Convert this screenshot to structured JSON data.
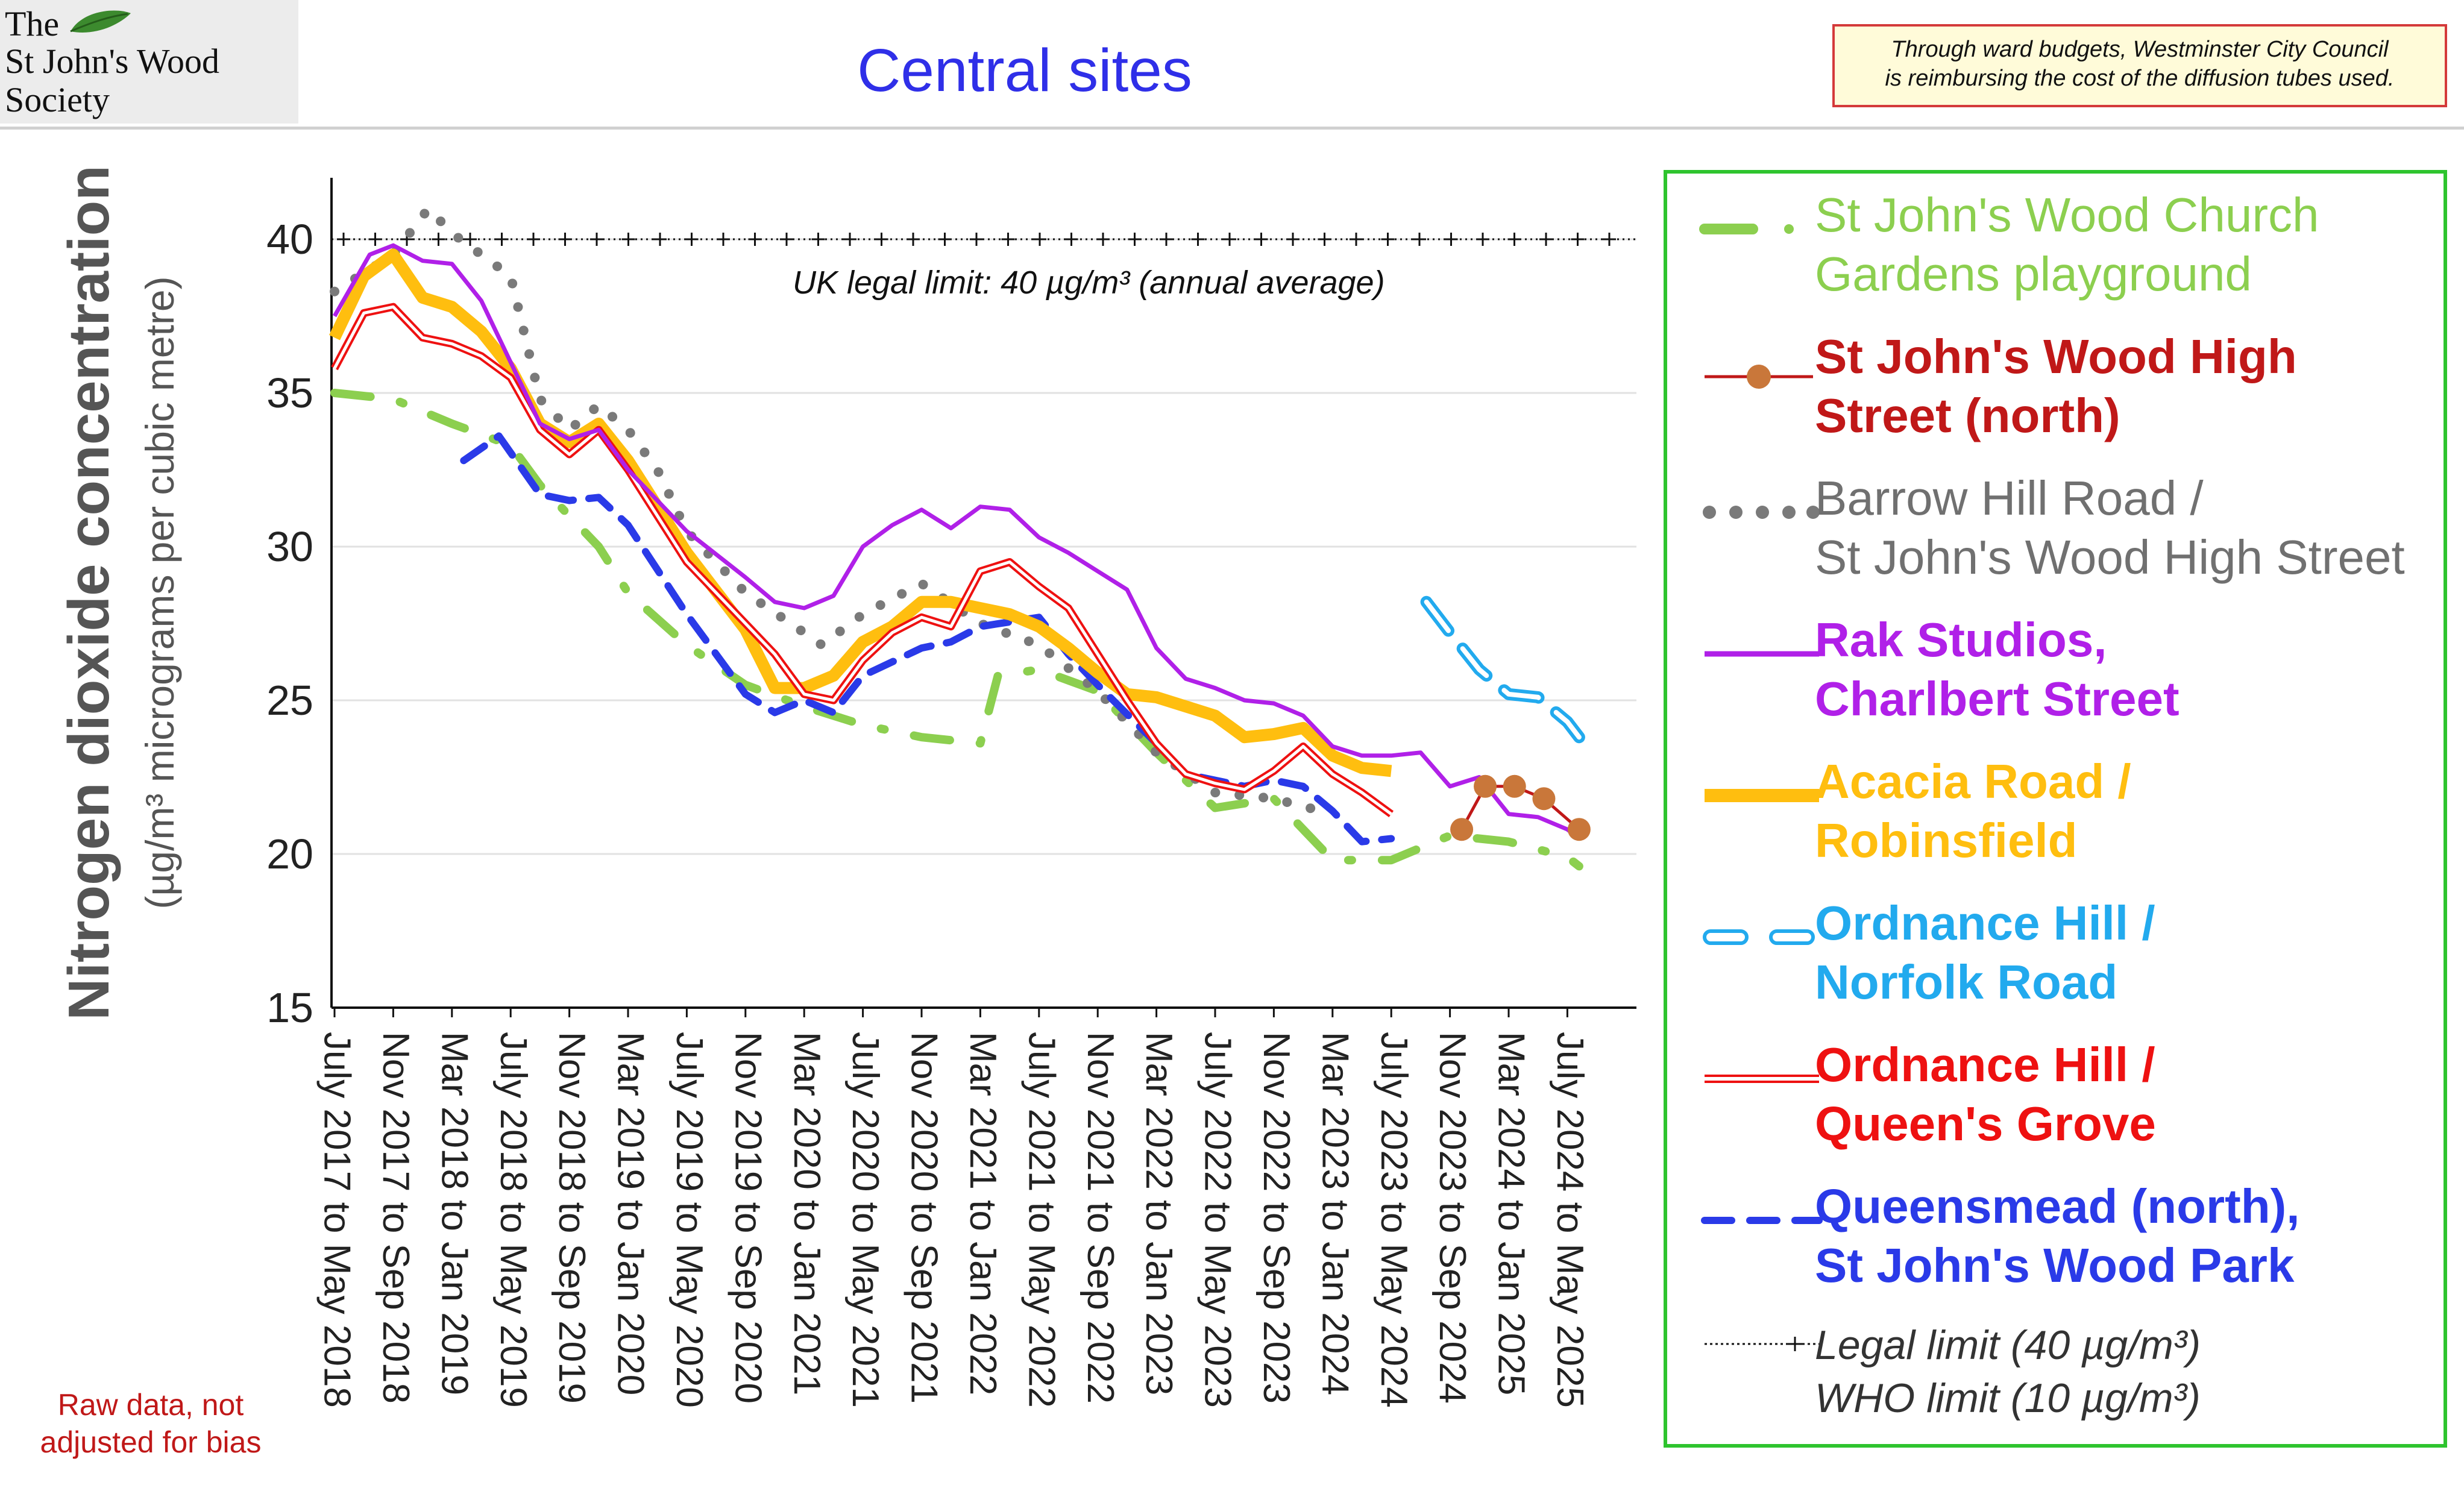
{
  "header": {
    "logo_line1": "The",
    "logo_line2": "St John's Wood",
    "logo_line3": "Society",
    "title": "Central sites",
    "note_line1": "Through ward budgets, Westminster City Council",
    "note_line2": "is reimbursing the cost of the diffusion tubes used.",
    "bias_note": "Raw data, not adjusted for bias"
  },
  "colors": {
    "church": "#8ccf4f",
    "high_street": "#c01818",
    "high_street_marker": "#c9773a",
    "barrow": "#7a7a7a",
    "rak": "#b020e8",
    "acacia": "#ffbe0f",
    "ordnance_norfolk": "#22aaee",
    "ordnance_queens": "#ee1111",
    "queensmead": "#2a3ae8",
    "legend_border": "#2ec42e"
  },
  "chart_data": {
    "type": "line",
    "ylabel_main": "Nitrogen dioxide concentration",
    "ylabel_sub": "(µg/m³ micrograms per cubic metre)",
    "ylim": [
      15,
      42
    ],
    "yticks": [
      15,
      20,
      25,
      30,
      35,
      40
    ],
    "grid": true,
    "legend_position": "right",
    "annotation": "UK legal limit:  40 µg/m³ (annual average)",
    "x_labels": [
      "July 2017 to May 2018",
      "Nov 2017 to Sep 2018",
      "Mar 2018 to Jan 2019",
      "July 2018 to May 2019",
      "Nov 2018 to Sep 2019",
      "Mar 2019 to Jan 2020",
      "July 2019 to May 2020",
      "Nov 2019 to Sep 2020",
      "Mar 2020 to Jan 2021",
      "July 2020 to May 2021",
      "Nov 2020 to Sep 2021",
      "Mar 2021 to Jan 2022",
      "July 2021 to May 2022",
      "Nov 2021 to Sep 2022",
      "Mar 2022 to Jan 2023",
      "July 2022 to May 2023",
      "Nov 2022 to Sep 2023",
      "Mar 2023 to Jan 2024",
      "July 2023 to May 2024",
      "Nov 2023 to Sep 2024",
      "Mar 2024 to Jan 2025",
      "July 2024 to May 2025"
    ],
    "x_range": [
      0,
      21.5
    ],
    "limit_line": {
      "value": 40
    },
    "series": [
      {
        "key": "church",
        "name": "St John's Wood Church\nGardens playground",
        "style": "dashdot",
        "points": [
          [
            0,
            35
          ],
          [
            1,
            34.8
          ],
          [
            2,
            34
          ],
          [
            3,
            33.3
          ],
          [
            3.5,
            32
          ],
          [
            4,
            31
          ],
          [
            4.5,
            30
          ],
          [
            5,
            28.5
          ],
          [
            6,
            26.8
          ],
          [
            7,
            25.5
          ],
          [
            8,
            24.8
          ],
          [
            9,
            24.2
          ],
          [
            9.5,
            24
          ],
          [
            10,
            23.8
          ],
          [
            11,
            23.6
          ],
          [
            11.3,
            25.8
          ],
          [
            12,
            26
          ],
          [
            13,
            25.3
          ],
          [
            14,
            23.3
          ],
          [
            15,
            21.5
          ],
          [
            16,
            21.8
          ],
          [
            17,
            19.8
          ],
          [
            18,
            19.8
          ],
          [
            19,
            20.6
          ],
          [
            20,
            20.4
          ],
          [
            21,
            19.9
          ],
          [
            21.2,
            19.6
          ]
        ]
      },
      {
        "key": "high_street",
        "name": "St John's Wood High\nStreet (north)",
        "style": "marker",
        "points": [
          [
            19.2,
            20.8
          ],
          [
            19.6,
            22.2
          ],
          [
            20.1,
            22.2
          ],
          [
            20.6,
            21.8
          ],
          [
            21.2,
            20.8
          ]
        ]
      },
      {
        "key": "barrow",
        "name": "Barrow Hill Road /\nSt John's Wood High Street",
        "style": "dotted",
        "points": [
          [
            0,
            38.3
          ],
          [
            1,
            39.5
          ],
          [
            1.6,
            41
          ],
          [
            2,
            40.2
          ],
          [
            3,
            38.8
          ],
          [
            3.5,
            34.8
          ],
          [
            4,
            33.8
          ],
          [
            4.5,
            34.6
          ],
          [
            5,
            33.8
          ],
          [
            5.5,
            32.5
          ],
          [
            6,
            30.5
          ],
          [
            7,
            28.5
          ],
          [
            8,
            27.2
          ],
          [
            8.3,
            26.8
          ],
          [
            9,
            27.8
          ],
          [
            10,
            28.8
          ],
          [
            11,
            27.5
          ],
          [
            12,
            26.8
          ],
          [
            13,
            25.3
          ],
          [
            14,
            23.3
          ],
          [
            15,
            22
          ],
          [
            16,
            21.8
          ],
          [
            17,
            21.3
          ]
        ]
      },
      {
        "key": "rak",
        "name": "Rak Studios,\nCharlbert Street",
        "style": "solid",
        "points": [
          [
            0,
            37.5
          ],
          [
            0.6,
            39.5
          ],
          [
            1,
            39.8
          ],
          [
            1.5,
            39.3
          ],
          [
            2,
            39.2
          ],
          [
            2.5,
            38
          ],
          [
            3,
            36
          ],
          [
            3.5,
            34
          ],
          [
            4,
            33.5
          ],
          [
            4.5,
            33.8
          ],
          [
            5,
            32.5
          ],
          [
            6,
            30.5
          ],
          [
            7,
            29
          ],
          [
            7.5,
            28.2
          ],
          [
            8,
            28
          ],
          [
            8.5,
            28.4
          ],
          [
            9,
            30
          ],
          [
            9.5,
            30.7
          ],
          [
            10,
            31.2
          ],
          [
            10.5,
            30.6
          ],
          [
            11,
            31.3
          ],
          [
            11.5,
            31.2
          ],
          [
            12,
            30.3
          ],
          [
            12.5,
            29.8
          ],
          [
            13,
            29.2
          ],
          [
            13.5,
            28.6
          ],
          [
            14,
            26.7
          ],
          [
            14.5,
            25.7
          ],
          [
            15,
            25.4
          ],
          [
            15.5,
            25
          ],
          [
            16,
            24.9
          ],
          [
            16.5,
            24.5
          ],
          [
            17,
            23.5
          ],
          [
            17.5,
            23.2
          ],
          [
            18,
            23.2
          ],
          [
            18.5,
            23.3
          ],
          [
            19,
            22.2
          ],
          [
            19.5,
            22.5
          ],
          [
            20,
            21.3
          ],
          [
            20.5,
            21.2
          ],
          [
            21,
            20.8
          ],
          [
            21.2,
            20.5
          ]
        ]
      },
      {
        "key": "acacia",
        "name": "Acacia Road /\nRobinsfield",
        "style": "thick",
        "points": [
          [
            0,
            36.8
          ],
          [
            0.5,
            38.8
          ],
          [
            1,
            39.5
          ],
          [
            1.5,
            38.1
          ],
          [
            2,
            37.8
          ],
          [
            2.5,
            37
          ],
          [
            3,
            35.8
          ],
          [
            3.5,
            34
          ],
          [
            4,
            33.4
          ],
          [
            4.5,
            34
          ],
          [
            5,
            32.8
          ],
          [
            6,
            29.8
          ],
          [
            7,
            27.3
          ],
          [
            7.5,
            25.4
          ],
          [
            8,
            25.4
          ],
          [
            8.5,
            25.8
          ],
          [
            9,
            26.9
          ],
          [
            9.5,
            27.4
          ],
          [
            10,
            28.2
          ],
          [
            10.5,
            28.2
          ],
          [
            11,
            28
          ],
          [
            11.5,
            27.8
          ],
          [
            12,
            27.4
          ],
          [
            12.5,
            26.7
          ],
          [
            13,
            25.9
          ],
          [
            13.5,
            25.2
          ],
          [
            14,
            25.1
          ],
          [
            14.5,
            24.8
          ],
          [
            15,
            24.5
          ],
          [
            15.5,
            23.8
          ],
          [
            16,
            23.9
          ],
          [
            16.5,
            24.1
          ],
          [
            17,
            23.2
          ],
          [
            17.5,
            22.8
          ],
          [
            18,
            22.7
          ]
        ]
      },
      {
        "key": "ordnance_norfolk",
        "name": "Ordnance Hill /\nNorfolk Road",
        "style": "pill-dash",
        "points": [
          [
            18.6,
            28.2
          ],
          [
            19,
            27.2
          ],
          [
            19.5,
            26
          ],
          [
            20,
            25.2
          ],
          [
            20.5,
            25.1
          ],
          [
            21,
            24.3
          ],
          [
            21.2,
            23.8
          ]
        ]
      },
      {
        "key": "ordnance_queens",
        "name": "Ordnance Hill /\nQueen's Grove",
        "style": "double",
        "points": [
          [
            0,
            35.8
          ],
          [
            0.5,
            37.6
          ],
          [
            1,
            37.8
          ],
          [
            1.5,
            36.8
          ],
          [
            2,
            36.6
          ],
          [
            2.5,
            36.2
          ],
          [
            3,
            35.5
          ],
          [
            3.5,
            33.8
          ],
          [
            4,
            33
          ],
          [
            4.5,
            33.8
          ],
          [
            5,
            32.5
          ],
          [
            6,
            29.5
          ],
          [
            7,
            27.5
          ],
          [
            7.5,
            26.5
          ],
          [
            8,
            25.2
          ],
          [
            8.5,
            25
          ],
          [
            9,
            26.3
          ],
          [
            9.5,
            27.2
          ],
          [
            10,
            27.7
          ],
          [
            10.5,
            27.4
          ],
          [
            11,
            29.2
          ],
          [
            11.5,
            29.5
          ],
          [
            12,
            28.7
          ],
          [
            12.5,
            28
          ],
          [
            13,
            26.5
          ],
          [
            13.5,
            25
          ],
          [
            14,
            23.6
          ],
          [
            14.5,
            22.6
          ],
          [
            15,
            22.3
          ],
          [
            15.5,
            22.1
          ],
          [
            16,
            22.7
          ],
          [
            16.5,
            23.5
          ],
          [
            17,
            22.6
          ],
          [
            17.5,
            22
          ],
          [
            18,
            21.3
          ]
        ]
      },
      {
        "key": "queensmead",
        "name": "Queensmead (north),\nSt John's Wood Park",
        "style": "dashed",
        "points": [
          [
            2.2,
            32.8
          ],
          [
            2.8,
            33.6
          ],
          [
            3.5,
            31.7
          ],
          [
            4,
            31.5
          ],
          [
            4.5,
            31.6
          ],
          [
            5,
            30.7
          ],
          [
            6,
            27.8
          ],
          [
            7,
            25.2
          ],
          [
            7.5,
            24.6
          ],
          [
            8,
            25
          ],
          [
            8.5,
            24.6
          ],
          [
            9,
            25.8
          ],
          [
            10,
            26.7
          ],
          [
            10.5,
            26.9
          ],
          [
            11,
            27.4
          ],
          [
            12,
            27.7
          ],
          [
            12.5,
            26.5
          ],
          [
            13,
            25.5
          ],
          [
            14,
            23.6
          ],
          [
            14.5,
            22.6
          ],
          [
            15,
            22.4
          ],
          [
            15.5,
            22.2
          ],
          [
            16,
            22.4
          ],
          [
            16.5,
            22.2
          ],
          [
            17,
            21.4
          ],
          [
            17.5,
            20.4
          ],
          [
            18,
            20.5
          ]
        ]
      }
    ],
    "legend_limits": {
      "legal": "Legal limit  (40 µg/m³)",
      "who": "WHO limit  (10 µg/m³)"
    }
  }
}
